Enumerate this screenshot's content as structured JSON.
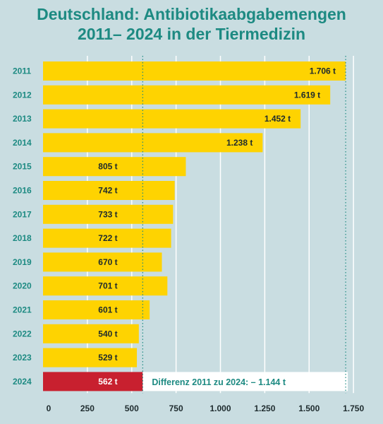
{
  "title": {
    "line1": "Deutschland: Antibiotikaabgabemengen",
    "line2": "2011– 2024 in der Tiermedizin"
  },
  "chart_data": {
    "type": "bar",
    "orientation": "horizontal",
    "categories": [
      "2011",
      "2012",
      "2013",
      "2014",
      "2015",
      "2016",
      "2017",
      "2018",
      "2019",
      "2020",
      "2021",
      "2022",
      "2023",
      "2024"
    ],
    "values": [
      1706,
      1619,
      1452,
      1238,
      805,
      742,
      733,
      722,
      670,
      701,
      601,
      540,
      529,
      562
    ],
    "value_labels": [
      "1.706 t",
      "1.619 t",
      "1.452 t",
      "1.238 t",
      "805 t",
      "742 t",
      "733 t",
      "722 t",
      "670 t",
      "701 t",
      "601 t",
      "540 t",
      "529 t",
      "562 t"
    ],
    "xlim": [
      0,
      1750
    ],
    "xticks": [
      0,
      250,
      500,
      750,
      1000,
      1250,
      1500,
      1750
    ],
    "xtick_labels": [
      "0",
      "250",
      "500",
      "750",
      "1.000",
      "1.250",
      "1.500",
      "1.750"
    ],
    "grid": true,
    "reference_lines": [
      562,
      1706
    ],
    "annotation": "Differenz 2011 zu 2024: – 1.144 t",
    "colors": {
      "bar": "#fed301",
      "highlight": "#c8202f",
      "accent": "#1d8a82",
      "background": "#c9dde1"
    }
  }
}
